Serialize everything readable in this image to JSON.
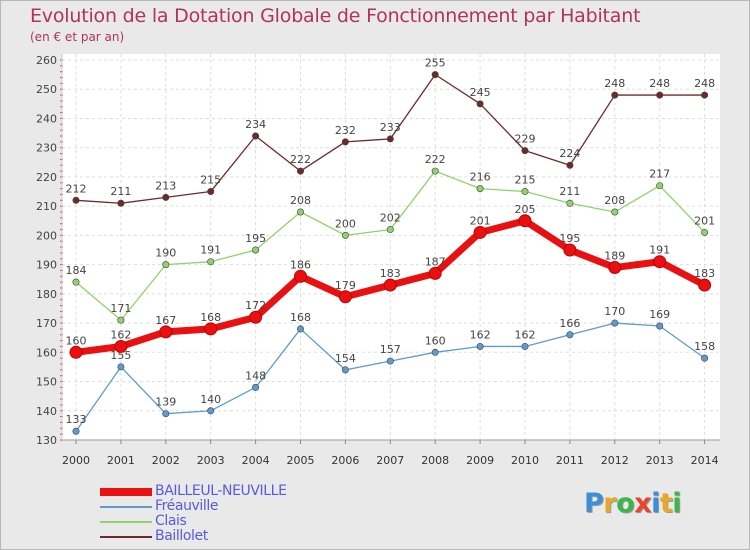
{
  "chart_data": {
    "type": "line",
    "title": "Evolution de la Dotation Globale de Fonctionnement par Habitant",
    "subtitle": "(en € et par an)",
    "x": [
      "2000",
      "2001",
      "2002",
      "2003",
      "2004",
      "2005",
      "2006",
      "2007",
      "2008",
      "2009",
      "2010",
      "2011",
      "2012",
      "2013",
      "2014"
    ],
    "ylim": [
      130,
      260
    ],
    "yticks": [
      130,
      140,
      150,
      160,
      170,
      180,
      190,
      200,
      210,
      220,
      230,
      240,
      250,
      260
    ],
    "grid": true,
    "legend_position": "bottom-left",
    "series": [
      {
        "name": "BAILLEUL-NEUVILLE",
        "color": "#e81010",
        "values": [
          160,
          162,
          167,
          168,
          172,
          186,
          179,
          183,
          187,
          201,
          205,
          195,
          189,
          191,
          183
        ]
      },
      {
        "name": "Fréauville",
        "color": "#5f9bcd",
        "values": [
          133,
          155,
          139,
          140,
          148,
          168,
          154,
          157,
          160,
          162,
          162,
          166,
          170,
          169,
          158
        ]
      },
      {
        "name": "Clais",
        "color": "#8fd36b",
        "values": [
          184,
          171,
          190,
          191,
          195,
          208,
          200,
          202,
          222,
          216,
          215,
          211,
          208,
          217,
          201
        ]
      },
      {
        "name": "Baillolet",
        "color": "#6e2a2a",
        "values": [
          212,
          211,
          213,
          215,
          234,
          222,
          232,
          233,
          255,
          245,
          229,
          224,
          248,
          248,
          248
        ]
      }
    ]
  },
  "logo": {
    "letters": [
      "P",
      "r",
      "o",
      "x",
      "i",
      "t",
      "i"
    ],
    "colors": [
      "#3b8ed8",
      "#e9a72a",
      "#3cb64a",
      "#e8452c",
      "#3b8ed8",
      "#e9a72a",
      "#3cb64a"
    ]
  }
}
